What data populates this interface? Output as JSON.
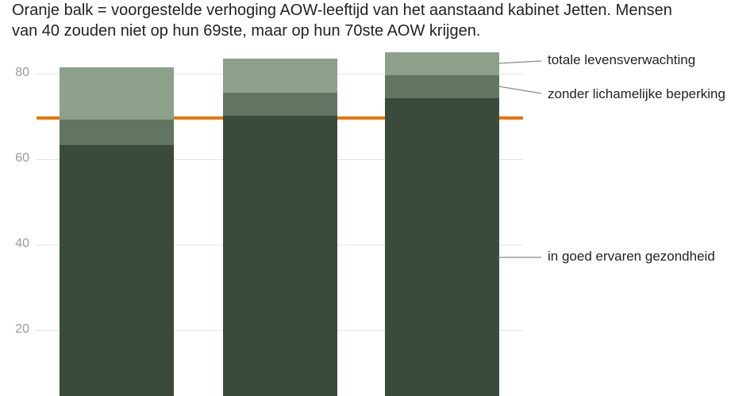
{
  "subtitle": {
    "line1": "Oranje balk = voorgestelde verhoging AOW-leeftijd van het aanstaand kabinet Jetten. Mensen",
    "line2": "van 40 zouden niet op hun 69ste, maar op hun 70ste AOW krijgen."
  },
  "colors": {
    "total": "#8ca08a",
    "no_disability": "#627562",
    "good_health": "#3a4b3b",
    "reference_line": "#e8750d",
    "grid": "#e6e6e6",
    "axis_text": "#9a9a9a"
  },
  "annotations": {
    "total": "totale levensverwachting",
    "no_disability": "zonder lichamelijke beperking",
    "good_health": "in goed ervaren gezondheid"
  },
  "y_ticks": [
    "80",
    "60",
    "40",
    "20"
  ],
  "chart_data": {
    "type": "bar",
    "stacked": "overlapping",
    "title": "",
    "subtitle": "Oranje balk = voorgestelde verhoging AOW-leeftijd van het aanstaand kabinet Jetten. Mensen van 40 zouden niet op hun 69ste, maar op hun 70ste AOW krijgen.",
    "categories": [
      "",
      "",
      ""
    ],
    "series": [
      {
        "name": "totale levensverwachting",
        "values": [
          81.5,
          83.5,
          85.0
        ]
      },
      {
        "name": "zonder lichamelijke beperking",
        "values": [
          69.3,
          75.6,
          79.6
        ]
      },
      {
        "name": "in goed ervaren gezondheid",
        "values": [
          63.3,
          70.2,
          74.3
        ]
      }
    ],
    "reference_line": {
      "label": "voorgestelde AOW-leeftijd",
      "value": 70
    },
    "xlabel": "",
    "ylabel": "",
    "y_ticks": [
      20,
      40,
      60,
      80
    ],
    "ylim": [
      0,
      85
    ],
    "grid": true,
    "legend_position": "right (direct annotations)"
  }
}
